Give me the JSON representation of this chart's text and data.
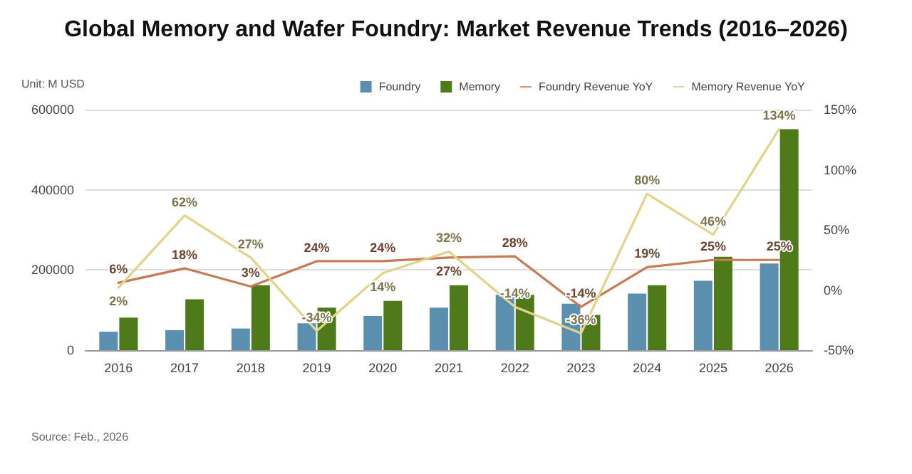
{
  "chart_data": {
    "type": "bar",
    "title": "Global Memory and Wafer Foundry: Market Revenue Trends (2016–2026)",
    "ylabel": "Unit: M USD",
    "annotations": [
      "Source: Feb., 2026"
    ],
    "categories": [
      "2016",
      "2017",
      "2018",
      "2019",
      "2020",
      "2021",
      "2022",
      "2023",
      "2024",
      "2025",
      "2026"
    ],
    "series": [
      {
        "name": "Foundry",
        "color": "#5b8fb0",
        "values": [
          46000,
          50000,
          54000,
          67000,
          85000,
          106000,
          138000,
          116000,
          141000,
          173000,
          216000
        ]
      },
      {
        "name": "Memory",
        "color": "#4e7a1a",
        "values": [
          81000,
          127000,
          162000,
          106000,
          123000,
          162000,
          138000,
          88000,
          162000,
          233000,
          551000
        ]
      },
      {
        "name": "Foundry Revenue YoY",
        "type": "line",
        "axis": "y2",
        "color": "#c87a55",
        "values": [
          6,
          18,
          3,
          24,
          24,
          27,
          28,
          -14,
          19,
          25,
          25
        ],
        "value_labels": [
          "6%",
          "18%",
          "3%",
          "24%",
          "24%",
          "27%",
          "28%",
          "-14%",
          "19%",
          "25%",
          "25%"
        ]
      },
      {
        "name": "Memory Revenue YoY",
        "type": "line",
        "axis": "y2",
        "color": "#e3d387",
        "values": [
          2,
          62,
          27,
          -34,
          14,
          32,
          -14,
          -36,
          80,
          46,
          134
        ],
        "value_labels": [
          "2%",
          "62%",
          "27%",
          "-34%",
          "14%",
          "32%",
          "-14%",
          "-36%",
          "80%",
          "46%",
          "134%"
        ]
      }
    ],
    "ylim": [
      0,
      600000
    ],
    "yticks": [
      0,
      200000,
      400000,
      600000
    ],
    "y2lim": [
      -50,
      150
    ],
    "y2ticks": [
      {
        "value": -50,
        "label": "-50%"
      },
      {
        "value": 0,
        "label": "0%"
      },
      {
        "value": 50,
        "label": "50%"
      },
      {
        "value": 100,
        "label": "100%"
      },
      {
        "value": 150,
        "label": "150%"
      }
    ],
    "grid": "y",
    "legend": "top right",
    "marker": "none",
    "line_style": "solid"
  }
}
